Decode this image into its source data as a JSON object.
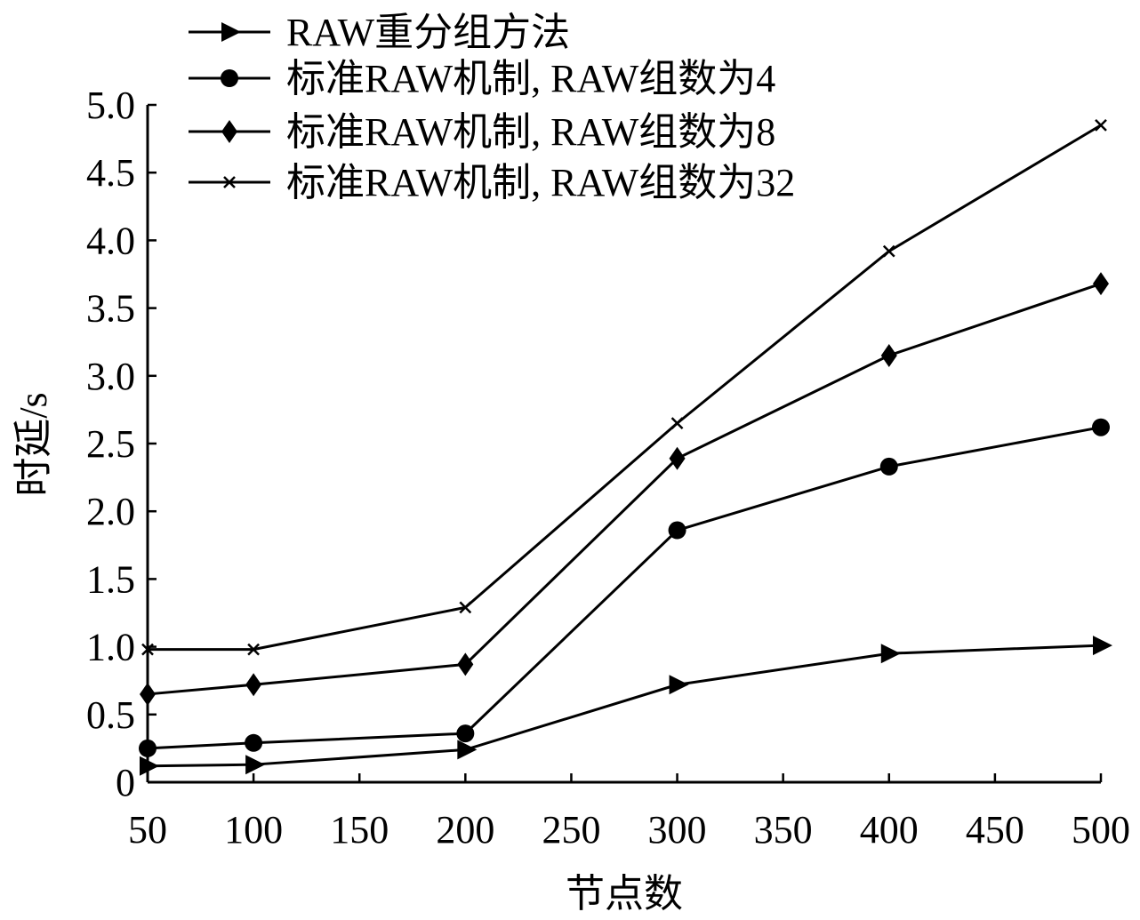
{
  "chart_data": {
    "type": "line",
    "xlabel": "节点数",
    "ylabel": "时延/s",
    "x_ticks": [
      "50",
      "100",
      "150",
      "200",
      "250",
      "300",
      "350",
      "400",
      "450",
      "500"
    ],
    "y_ticks": [
      "0",
      "0.5",
      "1.0",
      "1.5",
      "2.0",
      "2.5",
      "3.0",
      "3.5",
      "4.0",
      "4.5",
      "5.0"
    ],
    "xlim": [
      50,
      500
    ],
    "ylim": [
      0,
      5.0
    ],
    "grid": false,
    "legend_position": "top-left",
    "x": [
      50,
      100,
      200,
      300,
      400,
      500
    ],
    "series": [
      {
        "name": "RAW重分组方法",
        "marker": "triangle-right",
        "values": [
          0.12,
          0.13,
          0.24,
          0.72,
          0.95,
          1.01
        ]
      },
      {
        "name": "标准RAW机制, RAW组数为4",
        "marker": "circle",
        "values": [
          0.25,
          0.29,
          0.36,
          1.86,
          2.33,
          2.62
        ]
      },
      {
        "name": "标准RAW机制, RAW组数为8",
        "marker": "diamond",
        "values": [
          0.65,
          0.72,
          0.87,
          2.39,
          3.15,
          3.68
        ]
      },
      {
        "name": "标准RAW机制, RAW组数为32",
        "marker": "x",
        "values": [
          0.98,
          0.98,
          1.29,
          2.65,
          3.92,
          4.85
        ]
      }
    ]
  }
}
